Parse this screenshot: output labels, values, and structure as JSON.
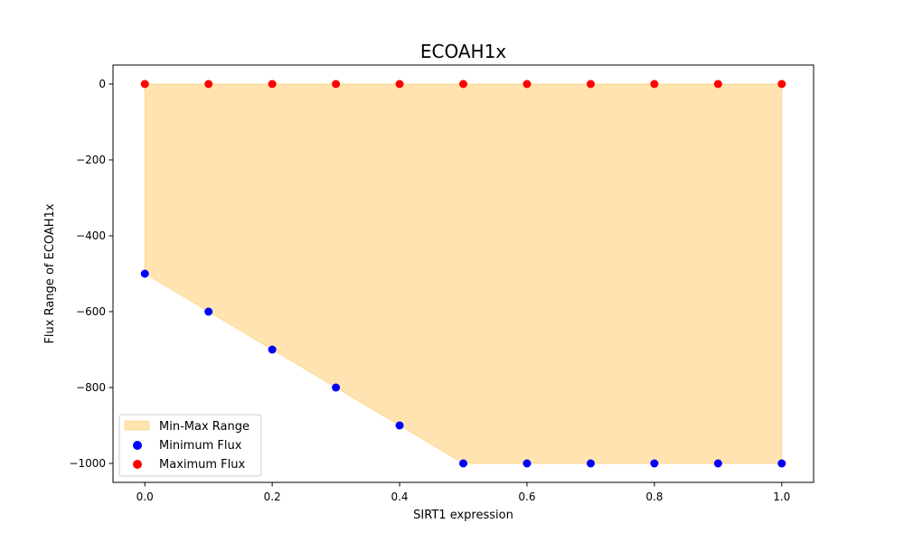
{
  "chart_data": {
    "type": "scatter",
    "title": "ECOAH1x",
    "xlabel": "SIRT1 expression",
    "ylabel": "Flux Range of ECOAH1x",
    "xlim": [
      -0.05,
      1.05
    ],
    "ylim": [
      -1050,
      50
    ],
    "xticks": [
      0.0,
      0.2,
      0.4,
      0.6,
      0.8,
      1.0
    ],
    "xtick_labels": [
      "0.0",
      "0.2",
      "0.4",
      "0.6",
      "0.8",
      "1.0"
    ],
    "yticks": [
      0,
      -200,
      -400,
      -600,
      -800,
      -1000
    ],
    "ytick_labels": [
      "0",
      "−200",
      "−400",
      "−600",
      "−800",
      "−1000"
    ],
    "x": [
      0.0,
      0.1,
      0.2,
      0.3,
      0.4,
      0.5,
      0.6,
      0.7,
      0.8,
      0.9,
      1.0
    ],
    "series": [
      {
        "name": "Minimum Flux",
        "color": "#0000ff",
        "values": [
          -500,
          -600,
          -700,
          -800,
          -900,
          -1000,
          -1000,
          -1000,
          -1000,
          -1000,
          -1000
        ]
      },
      {
        "name": "Maximum Flux",
        "color": "#ff0000",
        "values": [
          0,
          0,
          0,
          0,
          0,
          0,
          0,
          0,
          0,
          0,
          0
        ]
      }
    ],
    "fill_between": {
      "name": "Min-Max Range",
      "color": "#ffa500",
      "opacity": 0.3
    },
    "legend": {
      "location": "lower-left",
      "entries": [
        "Min-Max Range",
        "Minimum Flux",
        "Maximum Flux"
      ]
    },
    "grid": false
  }
}
